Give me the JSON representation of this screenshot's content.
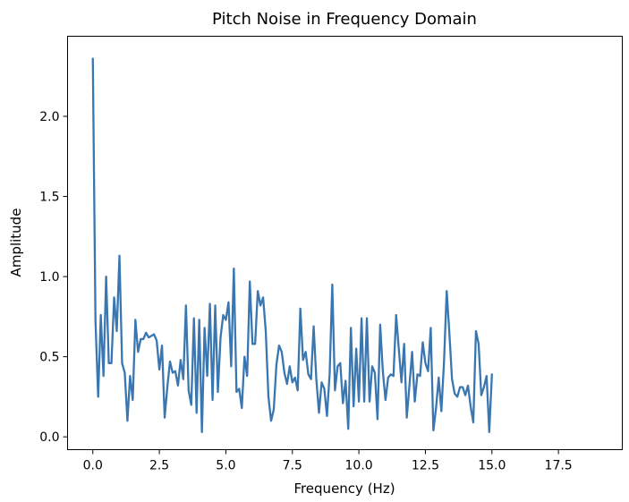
{
  "chart_data": {
    "type": "line",
    "title": "Pitch Noise in Frequency Domain",
    "xlabel": "Frequency (Hz)",
    "ylabel": "Amplitude",
    "xlim": [
      -0.95,
      19.9
    ],
    "ylim": [
      -0.08,
      2.5
    ],
    "xticks": [
      {
        "value": 0.0,
        "label": "0.0"
      },
      {
        "value": 2.5,
        "label": "2.5"
      },
      {
        "value": 5.0,
        "label": "5.0"
      },
      {
        "value": 7.5,
        "label": "7.5"
      },
      {
        "value": 10.0,
        "label": "10.0"
      },
      {
        "value": 12.5,
        "label": "12.5"
      },
      {
        "value": 15.0,
        "label": "15.0"
      },
      {
        "value": 17.5,
        "label": "17.5"
      }
    ],
    "yticks": [
      {
        "value": 0.0,
        "label": "0.0"
      },
      {
        "value": 0.5,
        "label": "0.5"
      },
      {
        "value": 1.0,
        "label": "1.0"
      },
      {
        "value": 1.5,
        "label": "1.5"
      },
      {
        "value": 2.0,
        "label": "2.0"
      }
    ],
    "grid": false,
    "color": "#3a76b0",
    "series": [
      {
        "x0": 0.0,
        "dx": 0.1,
        "values": [
          2.36,
          0.72,
          0.25,
          0.76,
          0.38,
          1.0,
          0.46,
          0.46,
          0.87,
          0.66,
          1.13,
          0.46,
          0.4,
          0.1,
          0.38,
          0.23,
          0.73,
          0.53,
          0.61,
          0.61,
          0.65,
          0.62,
          0.63,
          0.64,
          0.6,
          0.42,
          0.57,
          0.12,
          0.31,
          0.47,
          0.4,
          0.41,
          0.32,
          0.48,
          0.36,
          0.82,
          0.29,
          0.2,
          0.74,
          0.15,
          0.73,
          0.03,
          0.68,
          0.38,
          0.83,
          0.23,
          0.82,
          0.28,
          0.62,
          0.76,
          0.73,
          0.84,
          0.44,
          1.05,
          0.28,
          0.3,
          0.18,
          0.5,
          0.38,
          0.97,
          0.58,
          0.58,
          0.91,
          0.82,
          0.87,
          0.66,
          0.25,
          0.1,
          0.17,
          0.45,
          0.57,
          0.53,
          0.4,
          0.33,
          0.44,
          0.34,
          0.37,
          0.29,
          0.8,
          0.48,
          0.53,
          0.39,
          0.36,
          0.69,
          0.36,
          0.15,
          0.34,
          0.3,
          0.13,
          0.39,
          0.95,
          0.29,
          0.44,
          0.46,
          0.21,
          0.35,
          0.05,
          0.68,
          0.19,
          0.55,
          0.22,
          0.74,
          0.22,
          0.74,
          0.22,
          0.44,
          0.4,
          0.11,
          0.7,
          0.41,
          0.23,
          0.37,
          0.39,
          0.38,
          0.76,
          0.55,
          0.34,
          0.58,
          0.12,
          0.32,
          0.53,
          0.22,
          0.39,
          0.38,
          0.59,
          0.46,
          0.41,
          0.68,
          0.04,
          0.18,
          0.37,
          0.16,
          0.47,
          0.91,
          0.65,
          0.36,
          0.27,
          0.25,
          0.31,
          0.31,
          0.26,
          0.32,
          0.19,
          0.09,
          0.66,
          0.58,
          0.26,
          0.31,
          0.38,
          0.03,
          0.39
        ]
      }
    ]
  }
}
